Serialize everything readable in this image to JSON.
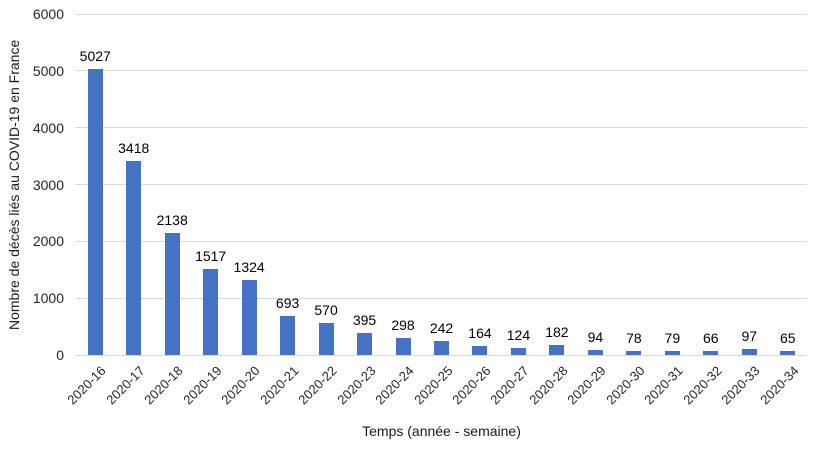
{
  "chart_data": {
    "type": "bar",
    "title": "",
    "categories": [
      "2020-16",
      "2020-17",
      "2020-18",
      "2020-19",
      "2020-20",
      "2020-21",
      "2020-22",
      "2020-23",
      "2020-24",
      "2020-25",
      "2020-26",
      "2020-27",
      "2020-28",
      "2020-29",
      "2020-30",
      "2020-31",
      "2020-32",
      "2020-33",
      "2020-34"
    ],
    "values": [
      5027,
      3418,
      2138,
      1517,
      1324,
      693,
      570,
      395,
      298,
      242,
      164,
      124,
      182,
      94,
      78,
      79,
      66,
      97,
      65
    ],
    "xlabel": "Temps (année - semaine)",
    "ylabel": "Nombre de décès liés au COVID-19 en France",
    "ylim": [
      0,
      6000
    ],
    "yticks": [
      0,
      1000,
      2000,
      3000,
      4000,
      5000,
      6000
    ],
    "grid": true,
    "legend_position": "none",
    "data_labels": true,
    "bar_color": "#4472C4",
    "gridline_color": "#D9D9D9"
  }
}
